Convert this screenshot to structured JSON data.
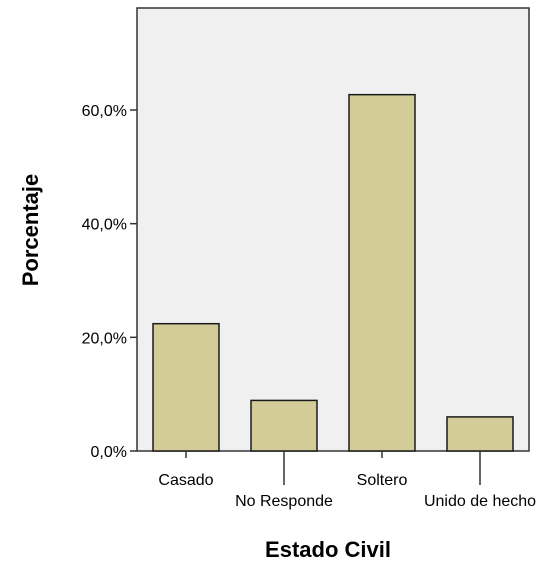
{
  "chart_data": {
    "type": "bar",
    "xlabel": "Estado Civil",
    "ylabel": "Porcentaje",
    "categories": [
      "Casado",
      "No Responde",
      "Soltero",
      "Unido de hecho"
    ],
    "values": [
      22.4,
      8.9,
      62.7,
      6.0
    ],
    "ylim": [
      0,
      76.5
    ],
    "yticks": [
      0,
      20,
      40,
      60
    ],
    "ytick_labels": [
      "0,0%",
      "20,0%",
      "40,0%",
      "60,0%"
    ],
    "grid": false,
    "legend": "none",
    "colors": {
      "bar_fill": "#d3cc98",
      "bar_stroke": "#1a1a1a",
      "plot_background": "#f0f0f0",
      "axis": "#333333"
    }
  }
}
